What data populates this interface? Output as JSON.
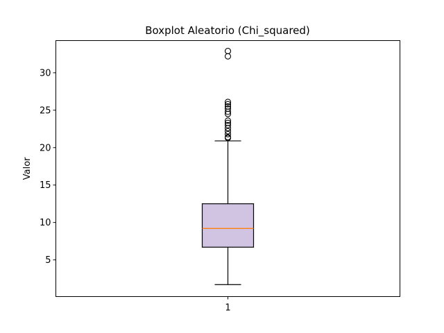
{
  "chart_data": {
    "type": "box",
    "title": "Boxplot Aleatorio (Chi_squared)",
    "xlabel": "",
    "ylabel": "Valor",
    "categories": [
      "1"
    ],
    "ylim": [
      0.1,
      34.3
    ],
    "yticks": [
      5,
      10,
      15,
      20,
      25,
      30
    ],
    "grid": false,
    "series": [
      {
        "box": {
          "whisker_low": 1.7,
          "q1": 6.7,
          "median": 9.2,
          "q3": 12.5,
          "whisker_high": 20.9,
          "outliers": [
            21.3,
            21.4,
            21.8,
            22.2,
            22.6,
            23.0,
            23.3,
            23.6,
            24.5,
            24.8,
            25.2,
            25.5,
            25.8,
            26.1,
            32.2,
            32.9
          ]
        }
      }
    ],
    "colors": {
      "box_fill": "#d1c4e2",
      "median": "#ff7f0e",
      "line": "#000000",
      "background": "#ffffff"
    }
  }
}
